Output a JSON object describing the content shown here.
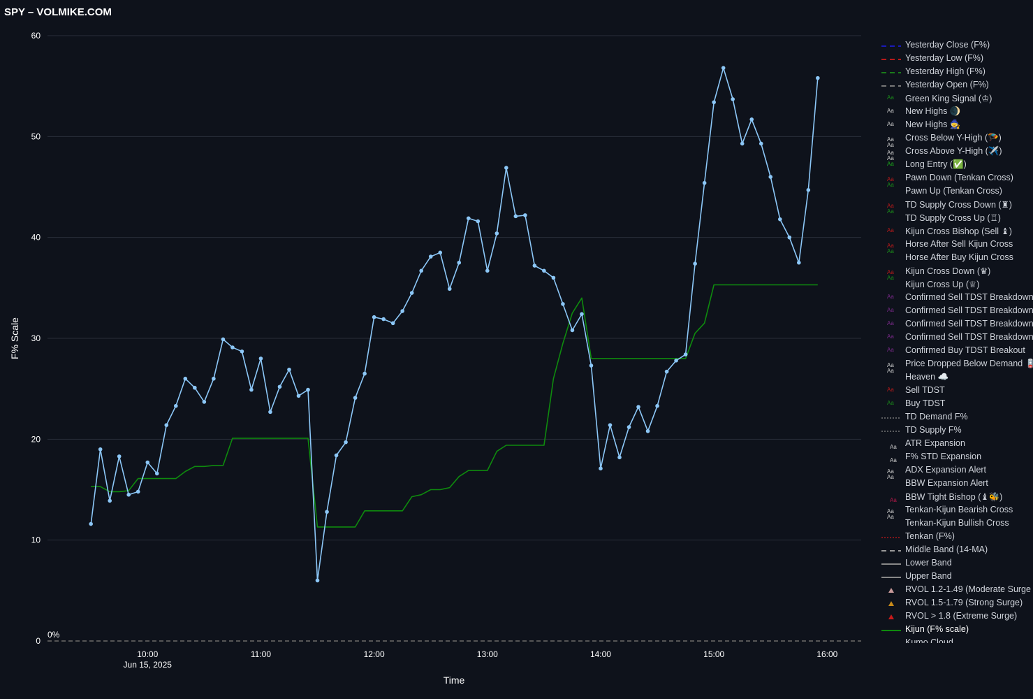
{
  "page": {
    "title": "SPY – VOLMIKE.COM"
  },
  "colors": {
    "background": "#0e121b",
    "grid": "#2a2f3a",
    "price_line": "#8cc7f7",
    "kijun_line": "#0e8a0e",
    "zero_line": "#555555"
  },
  "chart_data": {
    "type": "line",
    "xlabel": "Time",
    "ylabel": "F% Scale",
    "ylim": [
      0,
      60
    ],
    "yticks": [
      "0",
      "10",
      "20",
      "30",
      "40",
      "50",
      "60"
    ],
    "xticks": [
      "10:00",
      "11:00",
      "12:00",
      "13:00",
      "14:00",
      "15:00",
      "16:00"
    ],
    "x_date_label": "Jun 15, 2025",
    "zero_annotation": "0%",
    "xlim": [
      "09:07",
      "16:18"
    ],
    "grid": true,
    "legend_position": "right",
    "series": [
      {
        "name": "Kijun (F% scale)",
        "color": "#0e8a0e",
        "points": [
          [
            "09:30",
            15.3
          ],
          [
            "09:35",
            15.3
          ],
          [
            "09:40",
            14.8
          ],
          [
            "09:45",
            14.8
          ],
          [
            "09:50",
            14.9
          ],
          [
            "09:55",
            16.1
          ],
          [
            "10:00",
            16.1
          ],
          [
            "10:05",
            16.1
          ],
          [
            "10:10",
            16.1
          ],
          [
            "10:15",
            16.1
          ],
          [
            "10:20",
            16.8
          ],
          [
            "10:25",
            17.3
          ],
          [
            "10:30",
            17.3
          ],
          [
            "10:35",
            17.4
          ],
          [
            "10:40",
            17.4
          ],
          [
            "10:45",
            20.1
          ],
          [
            "10:50",
            20.1
          ],
          [
            "10:55",
            20.1
          ],
          [
            "11:00",
            20.1
          ],
          [
            "11:05",
            20.1
          ],
          [
            "11:10",
            20.1
          ],
          [
            "11:15",
            20.1
          ],
          [
            "11:20",
            20.1
          ],
          [
            "11:25",
            20.1
          ],
          [
            "11:30",
            11.3
          ],
          [
            "11:35",
            11.3
          ],
          [
            "11:40",
            11.3
          ],
          [
            "11:45",
            11.3
          ],
          [
            "11:50",
            11.3
          ],
          [
            "11:55",
            12.9
          ],
          [
            "12:00",
            12.9
          ],
          [
            "12:05",
            12.9
          ],
          [
            "12:10",
            12.9
          ],
          [
            "12:15",
            12.9
          ],
          [
            "12:20",
            14.3
          ],
          [
            "12:25",
            14.5
          ],
          [
            "12:30",
            15.0
          ],
          [
            "12:35",
            15.0
          ],
          [
            "12:40",
            15.2
          ],
          [
            "12:45",
            16.3
          ],
          [
            "12:50",
            16.9
          ],
          [
            "12:55",
            16.9
          ],
          [
            "13:00",
            16.9
          ],
          [
            "13:05",
            18.8
          ],
          [
            "13:10",
            19.4
          ],
          [
            "13:15",
            19.4
          ],
          [
            "13:20",
            19.4
          ],
          [
            "13:25",
            19.4
          ],
          [
            "13:30",
            19.4
          ],
          [
            "13:35",
            26.0
          ],
          [
            "13:40",
            29.5
          ],
          [
            "13:45",
            32.5
          ],
          [
            "13:50",
            34.0
          ],
          [
            "13:55",
            28.0
          ],
          [
            "14:00",
            28.0
          ],
          [
            "14:05",
            28.0
          ],
          [
            "14:10",
            28.0
          ],
          [
            "14:15",
            28.0
          ],
          [
            "14:20",
            28.0
          ],
          [
            "14:25",
            28.0
          ],
          [
            "14:30",
            28.0
          ],
          [
            "14:35",
            28.0
          ],
          [
            "14:40",
            28.0
          ],
          [
            "14:45",
            28.0
          ],
          [
            "14:50",
            30.5
          ],
          [
            "14:55",
            31.5
          ],
          [
            "15:00",
            35.3
          ],
          [
            "15:05",
            35.3
          ],
          [
            "15:10",
            35.3
          ],
          [
            "15:15",
            35.3
          ],
          [
            "15:20",
            35.3
          ],
          [
            "15:25",
            35.3
          ],
          [
            "15:30",
            35.3
          ],
          [
            "15:35",
            35.3
          ],
          [
            "15:40",
            35.3
          ],
          [
            "15:45",
            35.3
          ],
          [
            "15:50",
            35.3
          ],
          [
            "15:55",
            35.3
          ]
        ]
      },
      {
        "name": "",
        "color": "#8cc7f7",
        "markers": true,
        "points": [
          [
            "09:30",
            11.6
          ],
          [
            "09:35",
            19.0
          ],
          [
            "09:40",
            13.9
          ],
          [
            "09:45",
            18.3
          ],
          [
            "09:50",
            14.5
          ],
          [
            "09:55",
            14.8
          ],
          [
            "10:00",
            17.7
          ],
          [
            "10:05",
            16.6
          ],
          [
            "10:10",
            21.4
          ],
          [
            "10:15",
            23.3
          ],
          [
            "10:20",
            26.0
          ],
          [
            "10:25",
            25.1
          ],
          [
            "10:30",
            23.7
          ],
          [
            "10:35",
            26.0
          ],
          [
            "10:40",
            29.9
          ],
          [
            "10:45",
            29.1
          ],
          [
            "10:50",
            28.7
          ],
          [
            "10:55",
            24.9
          ],
          [
            "11:00",
            28.0
          ],
          [
            "11:05",
            22.7
          ],
          [
            "11:10",
            25.2
          ],
          [
            "11:15",
            26.9
          ],
          [
            "11:20",
            24.3
          ],
          [
            "11:25",
            24.9
          ],
          [
            "11:30",
            6.0
          ],
          [
            "11:35",
            12.8
          ],
          [
            "11:40",
            18.4
          ],
          [
            "11:45",
            19.7
          ],
          [
            "11:50",
            24.1
          ],
          [
            "11:55",
            26.5
          ],
          [
            "12:00",
            32.1
          ],
          [
            "12:05",
            31.9
          ],
          [
            "12:10",
            31.5
          ],
          [
            "12:15",
            32.7
          ],
          [
            "12:20",
            34.5
          ],
          [
            "12:25",
            36.7
          ],
          [
            "12:30",
            38.1
          ],
          [
            "12:35",
            38.5
          ],
          [
            "12:40",
            34.9
          ],
          [
            "12:45",
            37.5
          ],
          [
            "12:50",
            41.9
          ],
          [
            "12:55",
            41.6
          ],
          [
            "13:00",
            36.7
          ],
          [
            "13:05",
            40.4
          ],
          [
            "13:10",
            46.9
          ],
          [
            "13:15",
            42.1
          ],
          [
            "13:20",
            42.2
          ],
          [
            "13:25",
            37.2
          ],
          [
            "13:30",
            36.7
          ],
          [
            "13:35",
            36.0
          ],
          [
            "13:40",
            33.4
          ],
          [
            "13:45",
            30.8
          ],
          [
            "13:50",
            32.4
          ],
          [
            "13:55",
            27.3
          ],
          [
            "14:00",
            17.1
          ],
          [
            "14:05",
            21.4
          ],
          [
            "14:10",
            18.2
          ],
          [
            "14:15",
            21.2
          ],
          [
            "14:20",
            23.2
          ],
          [
            "14:25",
            20.8
          ],
          [
            "14:30",
            23.3
          ],
          [
            "14:35",
            26.7
          ],
          [
            "14:40",
            27.8
          ],
          [
            "14:45",
            28.4
          ],
          [
            "14:50",
            37.4
          ],
          [
            "14:55",
            45.4
          ],
          [
            "15:00",
            53.4
          ],
          [
            "15:05",
            56.8
          ],
          [
            "15:10",
            53.7
          ],
          [
            "15:15",
            49.3
          ],
          [
            "15:20",
            51.7
          ],
          [
            "15:25",
            49.3
          ],
          [
            "15:30",
            46.0
          ],
          [
            "15:35",
            41.8
          ],
          [
            "15:40",
            40.0
          ],
          [
            "15:45",
            37.5
          ],
          [
            "15:50",
            44.7
          ],
          [
            "15:55",
            55.8
          ]
        ]
      }
    ]
  },
  "legend": {
    "items": [
      {
        "label": "Yesterday Close (F%)",
        "symbol": "dash",
        "color": "#1a1ab8"
      },
      {
        "label": "Yesterday Low (F%)",
        "symbol": "dash",
        "color": "#b81a1a"
      },
      {
        "label": "Yesterday High (F%)",
        "symbol": "dash",
        "color": "#1a7a1a"
      },
      {
        "label": "Yesterday Open (F%)",
        "symbol": "dash",
        "color": "#777777"
      },
      {
        "label": "Green King Signal (♔)",
        "symbol": "aa",
        "color": "#1a8a1a"
      },
      {
        "label": "New Highs 🌒",
        "symbol": "aa",
        "color": "#cccccc"
      },
      {
        "label": "New Highs 🧙",
        "symbol": "aa",
        "color": "#cccccc"
      },
      {
        "label": "Cross Below Y-High (🪂)",
        "symbol": "aa2",
        "color": "#cccccc"
      },
      {
        "label": "Cross Above Y-High (✈️)",
        "symbol": "aa2",
        "color": "#cccccc"
      },
      {
        "label": "Long Entry (✅)",
        "symbol": "aa",
        "color": "#1aaa1a"
      },
      {
        "label": "Pawn Down (Tenkan Cross)",
        "symbol": "aa2",
        "color": "#b81a1a",
        "color2": "#1a8a1a"
      },
      {
        "label": "Pawn Up (Tenkan Cross)",
        "symbol": "none",
        "color": "#1a8a1a"
      },
      {
        "label": "TD Supply Cross Down (♜)",
        "symbol": "aa2",
        "color": "#b81a1a",
        "color2": "#1a8a1a"
      },
      {
        "label": "TD Supply Cross Up (♖)",
        "symbol": "none",
        "color": "#1a8a1a"
      },
      {
        "label": "Kijun Cross Bishop (Sell ♝)",
        "symbol": "aa",
        "color": "#b81a1a"
      },
      {
        "label": "Horse After Sell Kijun Cross",
        "symbol": "aa2",
        "color": "#b81a1a",
        "color2": "#1a8a1a"
      },
      {
        "label": "Horse After Buy Kijun Cross",
        "symbol": "none",
        "color": "#1a8a1a"
      },
      {
        "label": "Kijun Cross Down (♛)",
        "symbol": "aa2",
        "color": "#b81a1a",
        "color2": "#1a8a1a"
      },
      {
        "label": "Kijun Cross Up (♕)",
        "symbol": "none",
        "color": "#1a8a1a"
      },
      {
        "label": "Confirmed Sell TDST Breakdown",
        "symbol": "aa",
        "color": "#7a2a8a"
      },
      {
        "label": "Confirmed Sell TDST Breakdown",
        "symbol": "aa",
        "color": "#7a2a8a"
      },
      {
        "label": "Confirmed Sell TDST Breakdown",
        "symbol": "aa",
        "color": "#7a2a8a"
      },
      {
        "label": "Confirmed Sell TDST Breakdown",
        "symbol": "aa",
        "color": "#7a2a8a"
      },
      {
        "label": "Confirmed Buy TDST Breakout",
        "symbol": "aa",
        "color": "#7a2a8a"
      },
      {
        "label": "Price Dropped Below Demand 🪫",
        "symbol": "aa2",
        "color": "#cccccc"
      },
      {
        "label": "Heaven ☁️",
        "symbol": "none",
        "color": "#cccccc"
      },
      {
        "label": "Sell TDST",
        "symbol": "aa",
        "color": "#b81a1a"
      },
      {
        "label": "Buy TDST",
        "symbol": "aa",
        "color": "#1a8a1a"
      },
      {
        "label": "TD Demand F%",
        "symbol": "dot",
        "color": "#888888"
      },
      {
        "label": "TD Supply F%",
        "symbol": "dot",
        "color": "#888888"
      },
      {
        "label": "ATR Expansion",
        "symbol": "aa-low",
        "color": "#cccccc"
      },
      {
        "label": "F% STD Expansion",
        "symbol": "aa-low",
        "color": "#cccccc"
      },
      {
        "label": "ADX Expansion Alert",
        "symbol": "aa2",
        "color": "#cccccc"
      },
      {
        "label": "BBW Expansion Alert",
        "symbol": "none",
        "color": "#cccccc"
      },
      {
        "label": "BBW Tight Bishop (♝🐝)",
        "symbol": "aa-low",
        "color": "#b81a4a"
      },
      {
        "label": "Tenkan-Kijun Bearish Cross",
        "symbol": "aa2",
        "color": "#cccccc"
      },
      {
        "label": "Tenkan-Kijun Bullish Cross",
        "symbol": "none",
        "color": "#cccccc"
      },
      {
        "label": "Tenkan (F%)",
        "symbol": "dot",
        "color": "#c81a1a"
      },
      {
        "label": "Middle Band (14-MA)",
        "symbol": "dash",
        "color": "#999999"
      },
      {
        "label": "Lower Band",
        "symbol": "solid",
        "color": "#888888"
      },
      {
        "label": "Upper Band",
        "symbol": "solid",
        "color": "#888888"
      },
      {
        "label": "RVOL 1.2-1.49 (Moderate Surge",
        "symbol": "tri",
        "color": "#c89a9a"
      },
      {
        "label": "RVOL 1.5-1.79 (Strong Surge)",
        "symbol": "tri",
        "color": "#c88a1a"
      },
      {
        "label": "RVOL > 1.8 (Extreme Surge)",
        "symbol": "tri",
        "color": "#c81a1a"
      },
      {
        "label": "Kijun (F% scale)",
        "symbol": "solid",
        "color": "#0e8a0e",
        "active": true
      },
      {
        "label": "Kumo Cloud",
        "symbol": "solid",
        "color": "#333333"
      }
    ]
  }
}
